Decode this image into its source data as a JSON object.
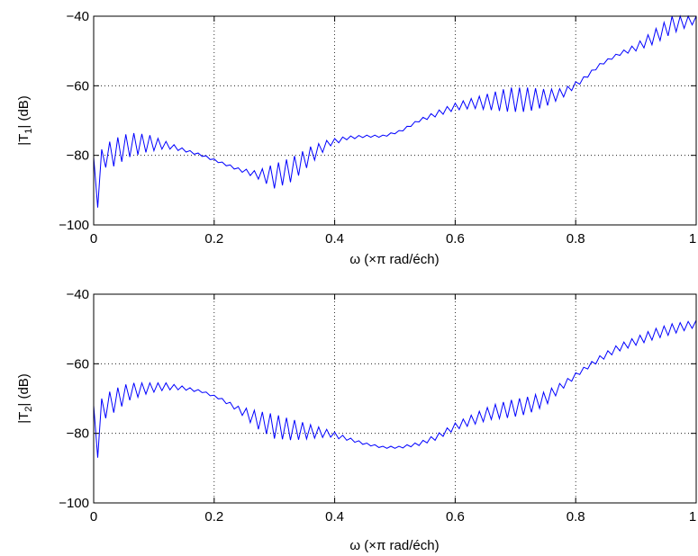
{
  "chart_data": [
    {
      "type": "line",
      "xlabel": "ω  (×π rad/éch)",
      "ylabel_parts": [
        "|T",
        "1",
        "| (dB)"
      ],
      "xlim": [
        0,
        1
      ],
      "ylim": [
        -100,
        -40
      ],
      "xticks": [
        0,
        0.2,
        0.4,
        0.6,
        0.8,
        1
      ],
      "xtick_labels": [
        "0",
        "0.2",
        "0.4",
        "0.6",
        "0.8",
        "1"
      ],
      "yticks": [
        -100,
        -80,
        -60,
        -40
      ],
      "ytick_labels": [
        "−100",
        "−80",
        "−60",
        "−40"
      ],
      "grid": true,
      "line_color": "#0000ff",
      "x": [
        0,
        0.03,
        0.06,
        0.09,
        0.12,
        0.15,
        0.18,
        0.21,
        0.24,
        0.27,
        0.3,
        0.33,
        0.36,
        0.39,
        0.42,
        0.45,
        0.48,
        0.51,
        0.54,
        0.57,
        0.6,
        0.63,
        0.66,
        0.69,
        0.72,
        0.75,
        0.78,
        0.81,
        0.84,
        0.87,
        0.9,
        0.93,
        0.96,
        1.0
      ],
      "y": [
        -82,
        -79.5,
        -77,
        -76.5,
        -77,
        -78.5,
        -80,
        -82,
        -84,
        -85.5,
        -86,
        -84,
        -80,
        -76.5,
        -75,
        -74.5,
        -74.5,
        -73,
        -70,
        -68,
        -66,
        -65,
        -64.5,
        -64,
        -64,
        -63.5,
        -62,
        -58.5,
        -54,
        -51,
        -49,
        -46,
        -42.5,
        -40.5
      ],
      "ripple": [
        1.5,
        4,
        3.5,
        2.5,
        1,
        0.4,
        0.3,
        0.3,
        0.4,
        1,
        3.5,
        3.5,
        2.5,
        1,
        0.5,
        0.3,
        0.3,
        0.3,
        0.4,
        0.8,
        1,
        1.5,
        2.5,
        3.5,
        3.5,
        2.5,
        1.2,
        0.6,
        0.4,
        0.4,
        1,
        2,
        2.5,
        1.5
      ],
      "spike": {
        "x": 0.01,
        "y": -95
      }
    },
    {
      "type": "line",
      "xlabel": "ω  (×π rad/éch)",
      "ylabel_parts": [
        "|T",
        "2",
        "| (dB)"
      ],
      "xlim": [
        0,
        1
      ],
      "ylim": [
        -100,
        -40
      ],
      "xticks": [
        0,
        0.2,
        0.4,
        0.6,
        0.8,
        1
      ],
      "xtick_labels": [
        "0",
        "0.2",
        "0.4",
        "0.6",
        "0.8",
        "1"
      ],
      "yticks": [
        -100,
        -80,
        -60,
        -40
      ],
      "ytick_labels": [
        "−100",
        "−80",
        "−60",
        "−40"
      ],
      "grid": true,
      "line_color": "#0000ff",
      "x": [
        0,
        0.03,
        0.06,
        0.09,
        0.12,
        0.15,
        0.18,
        0.21,
        0.24,
        0.27,
        0.3,
        0.33,
        0.36,
        0.39,
        0.42,
        0.45,
        0.48,
        0.51,
        0.54,
        0.57,
        0.6,
        0.63,
        0.66,
        0.69,
        0.72,
        0.75,
        0.78,
        0.81,
        0.84,
        0.87,
        0.9,
        0.93,
        0.96,
        1.0
      ],
      "y": [
        -75,
        -71,
        -68,
        -67,
        -66.5,
        -67,
        -68,
        -70,
        -73,
        -76,
        -78,
        -79,
        -79.5,
        -80,
        -81.5,
        -83,
        -84,
        -84,
        -83,
        -81,
        -78,
        -76,
        -74,
        -73,
        -72,
        -70,
        -66,
        -62,
        -58.5,
        -55.5,
        -53.5,
        -51.5,
        -50,
        -48.5
      ],
      "ripple": [
        3,
        3.5,
        2.5,
        1.5,
        1,
        0.5,
        0.3,
        0.3,
        0.8,
        2.5,
        3.5,
        3,
        2,
        1,
        0.5,
        0.3,
        0.3,
        0.3,
        0.5,
        0.8,
        1,
        1.5,
        2,
        2.5,
        2.5,
        2,
        1,
        0.6,
        0.8,
        1,
        1.2,
        1.5,
        1.5,
        1
      ],
      "spike": {
        "x": 0.01,
        "y": -87
      }
    }
  ]
}
